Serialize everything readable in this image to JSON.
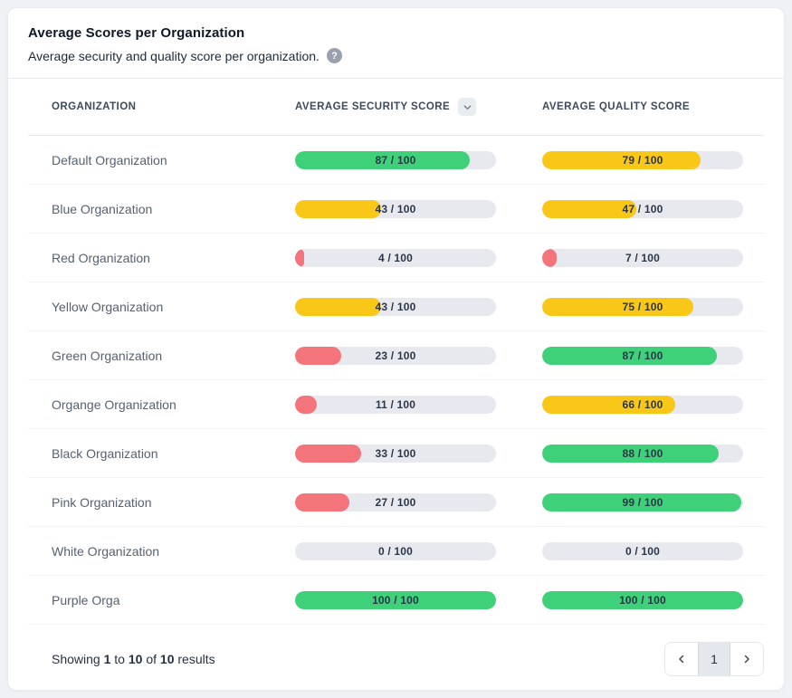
{
  "header": {
    "title": "Average Scores per Organization",
    "subtitle": "Average security and quality score per organization.",
    "help_icon": "?"
  },
  "colors": {
    "green": "#3fd07a",
    "yellow": "#f8c718",
    "red": "#f4747c",
    "none": "transparent",
    "track": "#e7e9ee"
  },
  "table": {
    "columns": [
      {
        "label": "ORGANIZATION"
      },
      {
        "label": "AVERAGE SECURITY SCORE",
        "sortable": true
      },
      {
        "label": "AVERAGE QUALITY SCORE"
      }
    ],
    "score_max": 100,
    "rows": [
      {
        "organization": "Default Organization",
        "security": {
          "value": 87,
          "label": "87 / 100",
          "color": "green"
        },
        "quality": {
          "value": 79,
          "label": "79 / 100",
          "color": "yellow"
        }
      },
      {
        "organization": "Blue Organization",
        "security": {
          "value": 43,
          "label": "43 / 100",
          "color": "yellow"
        },
        "quality": {
          "value": 47,
          "label": "47 / 100",
          "color": "yellow"
        }
      },
      {
        "organization": "Red Organization",
        "security": {
          "value": 4,
          "label": "4 / 100",
          "color": "red"
        },
        "quality": {
          "value": 7,
          "label": "7 / 100",
          "color": "red"
        }
      },
      {
        "organization": "Yellow Organization",
        "security": {
          "value": 43,
          "label": "43 / 100",
          "color": "yellow"
        },
        "quality": {
          "value": 75,
          "label": "75 / 100",
          "color": "yellow"
        }
      },
      {
        "organization": "Green Organization",
        "security": {
          "value": 23,
          "label": "23 / 100",
          "color": "red"
        },
        "quality": {
          "value": 87,
          "label": "87 / 100",
          "color": "green"
        }
      },
      {
        "organization": "Organge Organization",
        "security": {
          "value": 11,
          "label": "11 / 100",
          "color": "red"
        },
        "quality": {
          "value": 66,
          "label": "66 / 100",
          "color": "yellow"
        }
      },
      {
        "organization": "Black Organization",
        "security": {
          "value": 33,
          "label": "33 / 100",
          "color": "red"
        },
        "quality": {
          "value": 88,
          "label": "88 / 100",
          "color": "green"
        }
      },
      {
        "organization": "Pink Organization",
        "security": {
          "value": 27,
          "label": "27 / 100",
          "color": "red"
        },
        "quality": {
          "value": 99,
          "label": "99 / 100",
          "color": "green"
        }
      },
      {
        "organization": "White Organization",
        "security": {
          "value": 0,
          "label": "0 / 100",
          "color": "none"
        },
        "quality": {
          "value": 0,
          "label": "0 / 100",
          "color": "none"
        }
      },
      {
        "organization": "Purple Orga",
        "security": {
          "value": 100,
          "label": "100 / 100",
          "color": "green"
        },
        "quality": {
          "value": 100,
          "label": "100 / 100",
          "color": "green"
        }
      }
    ]
  },
  "footer": {
    "summary_parts": [
      {
        "text": "Showing "
      },
      {
        "text": "1",
        "bold": true
      },
      {
        "text": " to "
      },
      {
        "text": "10",
        "bold": true
      },
      {
        "text": " of "
      },
      {
        "text": "10",
        "bold": true
      },
      {
        "text": " results"
      }
    ],
    "pagination": {
      "current_page": "1"
    }
  }
}
